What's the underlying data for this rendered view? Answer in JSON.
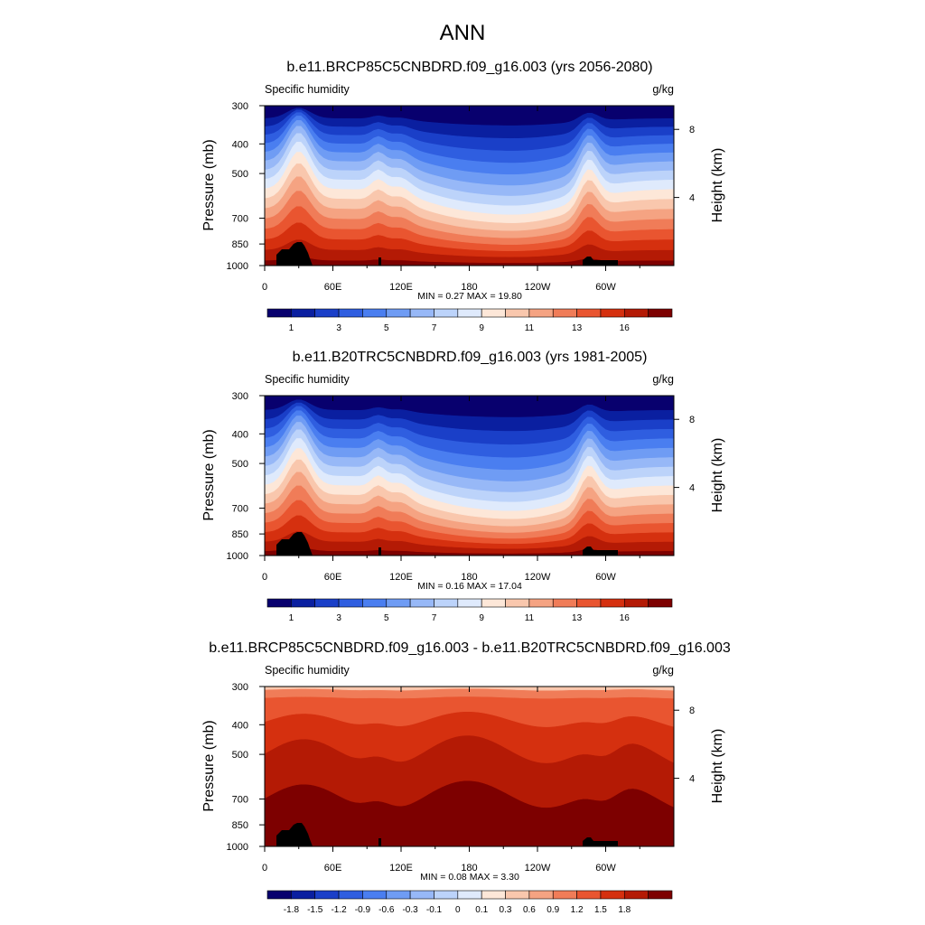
{
  "main_title": "ANN",
  "colorbar_abs": {
    "colors": [
      "#08006e",
      "#0a1fa0",
      "#1a3fc8",
      "#2f5ee0",
      "#4a7ef0",
      "#6f9cf4",
      "#97b8f7",
      "#bcd3fa",
      "#dfeafc",
      "#fde7d8",
      "#f9c7ad",
      "#f5a382",
      "#f07c58",
      "#e95530",
      "#d5300f",
      "#b41a05",
      "#7d0000"
    ],
    "labels": [
      "1",
      "3",
      "5",
      "7",
      "9",
      "11",
      "13",
      "16"
    ]
  },
  "colorbar_diff": {
    "colors": [
      "#08006e",
      "#0a1fa0",
      "#1a3fc8",
      "#2f5ee0",
      "#4a7ef0",
      "#6f9cf4",
      "#97b8f7",
      "#bcd3fa",
      "#dfeafc",
      "#fde7d8",
      "#f9c7ad",
      "#f5a382",
      "#f07c58",
      "#e95530",
      "#d5300f",
      "#b41a05",
      "#7d0000"
    ],
    "labels": [
      "-1.8",
      "-1.5",
      "-1.2",
      "-0.9",
      "-0.6",
      "-0.3",
      "-0.1",
      "0",
      "0.1",
      "0.3",
      "0.6",
      "0.9",
      "1.2",
      "1.5",
      "1.8"
    ]
  },
  "chart_data": [
    {
      "type": "heatmap",
      "title": "b.e11.BRCP85C5CNBDRD.f09_g16.003 (yrs 2056-2080)",
      "left_label": "Specific humidity",
      "right_label": "g/kg",
      "ylabel": "Pressure (mb)",
      "ylabel_right": "Height (km)",
      "x_ticks": [
        "0",
        "60E",
        "120E",
        "180",
        "120W",
        "60W"
      ],
      "x_tick_values": [
        0,
        60,
        120,
        180,
        240,
        300
      ],
      "xlim": [
        0,
        360
      ],
      "y_ticks": [
        "300",
        "400",
        "500",
        "700",
        "850",
        "1000"
      ],
      "y_tick_values": [
        300,
        400,
        500,
        700,
        850,
        1000
      ],
      "ylim": [
        300,
        1000
      ],
      "y_scale": "log",
      "height_ticks": [
        "8",
        "4"
      ],
      "height_tick_values": [
        8,
        4
      ],
      "min_max": "MIN =   0.27  MAX =  19.80",
      "min": 0.27,
      "max": 19.8,
      "levels_hint": "17 filled levels, low values aloft, high values near surface"
    },
    {
      "type": "heatmap",
      "title": "b.e11.B20TRC5CNBDRD.f09_g16.003 (yrs 1981-2005)",
      "left_label": "Specific humidity",
      "right_label": "g/kg",
      "ylabel": "Pressure (mb)",
      "ylabel_right": "Height (km)",
      "x_ticks": [
        "0",
        "60E",
        "120E",
        "180",
        "120W",
        "60W"
      ],
      "x_tick_values": [
        0,
        60,
        120,
        180,
        240,
        300
      ],
      "xlim": [
        0,
        360
      ],
      "y_ticks": [
        "300",
        "400",
        "500",
        "700",
        "850",
        "1000"
      ],
      "y_tick_values": [
        300,
        400,
        500,
        700,
        850,
        1000
      ],
      "ylim": [
        300,
        1000
      ],
      "y_scale": "log",
      "height_ticks": [
        "8",
        "4"
      ],
      "height_tick_values": [
        8,
        4
      ],
      "min_max": "MIN =   0.16  MAX =  17.04",
      "min": 0.16,
      "max": 17.04
    },
    {
      "type": "heatmap",
      "title": "b.e11.BRCP85C5CNBDRD.f09_g16.003 - b.e11.B20TRC5CNBDRD.f09_g16.003",
      "left_label": "Specific humidity",
      "right_label": "g/kg",
      "ylabel": "Pressure (mb)",
      "ylabel_right": "Height (km)",
      "x_ticks": [
        "0",
        "60E",
        "120E",
        "180",
        "120W",
        "60W"
      ],
      "x_tick_values": [
        0,
        60,
        120,
        180,
        240,
        300
      ],
      "xlim": [
        0,
        360
      ],
      "y_ticks": [
        "300",
        "400",
        "500",
        "700",
        "850",
        "1000"
      ],
      "y_tick_values": [
        300,
        400,
        500,
        700,
        850,
        1000
      ],
      "ylim": [
        300,
        1000
      ],
      "y_scale": "log",
      "height_ticks": [
        "8",
        "4"
      ],
      "height_tick_values": [
        8,
        4
      ],
      "min_max": "MIN =   0.08  MAX =   3.30",
      "min": 0.08,
      "max": 3.3
    }
  ]
}
